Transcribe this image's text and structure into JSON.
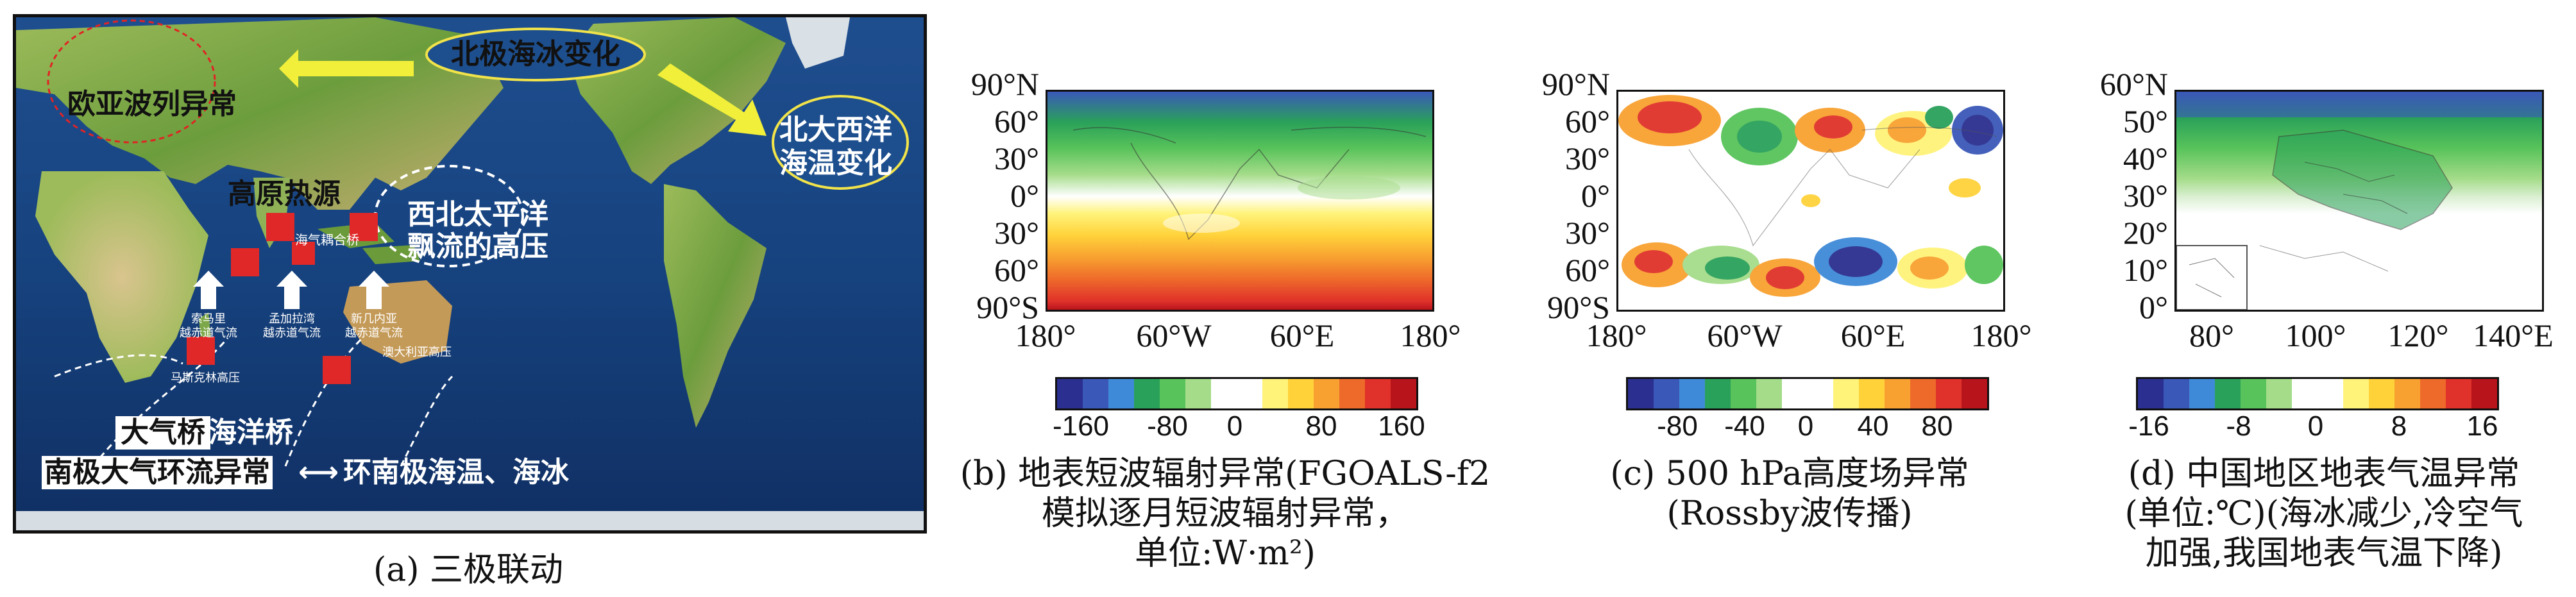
{
  "panel_a": {
    "labels": {
      "arctic_ice": "北极海冰变化",
      "eurasian_wave": "欧亚波列异常",
      "north_atlantic_1": "北大西洋",
      "north_atlantic_2": "海温变化",
      "plateau_heat": "高原热源",
      "nw_pacific_1": "西北太平洋",
      "nw_pacific_2": "飘流的高压",
      "ocean_bridge_box": "海气耦合桥",
      "atm_bridge": "大气桥",
      "ocean_bridge": "海洋桥",
      "antarctic_circ": "南极大气环流异常",
      "antarctic_sst": "环南极海温、海冰",
      "arrow_glyph": "⟷",
      "small_1a": "索马里",
      "small_1b": "越赤道气流",
      "small_2a": "孟加拉湾",
      "small_2b": "越赤道气流",
      "small_3a": "新几内亚",
      "small_3b": "越赤道气流",
      "small_mascarene": "马斯克林高压",
      "small_australia": "澳大利亚高压"
    },
    "caption": "(a) 三极联动"
  },
  "panel_b": {
    "yticks": [
      "90°N",
      "60°",
      "30°",
      "0°",
      "30°",
      "60°",
      "90°S"
    ],
    "xticks": [
      "180°",
      "60°W",
      "60°E",
      "180°"
    ],
    "cbar_ticks": [
      "-160",
      "-80",
      "0",
      "80",
      "160"
    ],
    "cbar_colors": [
      "#2b2f8f",
      "#3a58b8",
      "#3f8ad8",
      "#2aa15a",
      "#58c35a",
      "#a5dc8a",
      "#ffffff",
      "#ffffff",
      "#fff37a",
      "#ffd23a",
      "#f8a130",
      "#ee6a2a",
      "#e0322a",
      "#b8141c"
    ],
    "caption_1": "(b) 地表短波辐射异常(FGOALS-f2",
    "caption_2": "模拟逐月短波辐射异常，",
    "caption_3": "单位:W·m²)"
  },
  "panel_c": {
    "yticks": [
      "90°N",
      "60°",
      "30°",
      "0°",
      "30°",
      "60°",
      "90°S"
    ],
    "xticks": [
      "180°",
      "60°W",
      "60°E",
      "180°"
    ],
    "cbar_ticks": [
      "-80",
      "-40",
      "0",
      "40",
      "80"
    ],
    "cbar_colors": [
      "#2b2f8f",
      "#3a58b8",
      "#3f8ad8",
      "#2aa15a",
      "#58c35a",
      "#a5dc8a",
      "#ffffff",
      "#ffffff",
      "#fff37a",
      "#ffd23a",
      "#f8a130",
      "#ee6a2a",
      "#e0322a",
      "#b8141c"
    ],
    "caption_1": "(c) 500 hPa高度场异常",
    "caption_2": "(Rossby波传播)"
  },
  "panel_d": {
    "yticks": [
      "60°N",
      "50°",
      "40°",
      "30°",
      "20°",
      "10°",
      "0°"
    ],
    "xticks": [
      "80°",
      "100°",
      "120°",
      "140°E"
    ],
    "cbar_ticks": [
      "-16",
      "-8",
      "0",
      "8",
      "16"
    ],
    "cbar_colors": [
      "#2b2f8f",
      "#3a58b8",
      "#3f8ad8",
      "#2aa15a",
      "#58c35a",
      "#a5dc8a",
      "#ffffff",
      "#ffffff",
      "#fff37a",
      "#ffd23a",
      "#f8a130",
      "#ee6a2a",
      "#e0322a",
      "#b8141c"
    ],
    "caption_1": "(d) 中国地区地表气温异常",
    "caption_2": "(单位:℃)(海冰减少,冷空气",
    "caption_3": "加强,我国地表气温下降)"
  }
}
